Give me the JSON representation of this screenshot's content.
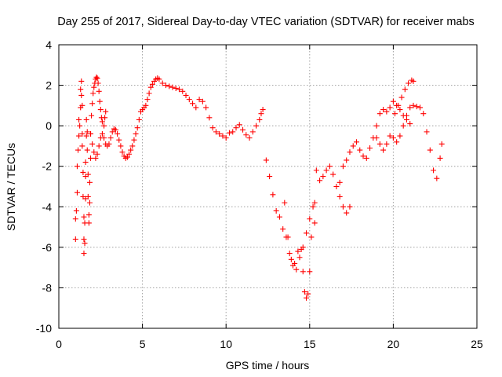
{
  "chart_data": {
    "type": "scatter",
    "title": "Day 255 of 2017, Sidereal Day-to-day VTEC variation (SDTVAR) for receiver mabs",
    "xlabel": "GPS time / hours",
    "ylabel": "SDTVAR / TECUs",
    "xlim": [
      0,
      25
    ],
    "ylim": [
      -10,
      4
    ],
    "xticks": [
      0,
      5,
      10,
      15,
      20,
      25
    ],
    "yticks": [
      -10,
      -8,
      -6,
      -4,
      -2,
      0,
      2,
      4
    ],
    "grid": true,
    "marker": "plus",
    "colors": {
      "series": "#ff0000",
      "grid": "#a0a0a0",
      "axis": "#000000"
    },
    "series": [
      {
        "name": "mabs",
        "points": [
          [
            1.0,
            -5.6
          ],
          [
            1.0,
            -4.6
          ],
          [
            1.05,
            -4.2
          ],
          [
            1.1,
            -3.3
          ],
          [
            1.1,
            -2.0
          ],
          [
            1.15,
            -1.2
          ],
          [
            1.2,
            -0.5
          ],
          [
            1.2,
            0.3
          ],
          [
            1.25,
            0.0
          ],
          [
            1.3,
            0.9
          ],
          [
            1.3,
            1.8
          ],
          [
            1.35,
            2.2
          ],
          [
            1.35,
            1.5
          ],
          [
            1.4,
            1.0
          ],
          [
            1.4,
            -0.4
          ],
          [
            1.4,
            -1.0
          ],
          [
            1.45,
            -2.3
          ],
          [
            1.45,
            -3.5
          ],
          [
            1.5,
            -4.5
          ],
          [
            1.5,
            -5.6
          ],
          [
            1.5,
            -6.3
          ],
          [
            1.55,
            -5.8
          ],
          [
            1.55,
            -4.8
          ],
          [
            1.6,
            -3.6
          ],
          [
            1.6,
            -2.5
          ],
          [
            1.6,
            -1.8
          ],
          [
            1.65,
            -0.5
          ],
          [
            1.65,
            0.3
          ],
          [
            1.7,
            -0.3
          ],
          [
            1.7,
            -1.2
          ],
          [
            1.75,
            -2.4
          ],
          [
            1.75,
            -3.5
          ],
          [
            1.8,
            -4.4
          ],
          [
            1.8,
            -4.8
          ],
          [
            1.85,
            -3.8
          ],
          [
            1.85,
            -2.8
          ],
          [
            1.9,
            -1.6
          ],
          [
            1.9,
            -0.4
          ],
          [
            1.95,
            0.5
          ],
          [
            2.0,
            1.1
          ],
          [
            2.05,
            1.6
          ],
          [
            2.1,
            1.9
          ],
          [
            2.15,
            2.1
          ],
          [
            2.2,
            2.3
          ],
          [
            2.25,
            2.4
          ],
          [
            2.3,
            2.35
          ],
          [
            2.35,
            2.1
          ],
          [
            2.4,
            1.7
          ],
          [
            2.45,
            1.2
          ],
          [
            2.5,
            0.8
          ],
          [
            2.55,
            0.4
          ],
          [
            2.6,
            0.2
          ],
          [
            2.7,
            0.0
          ],
          [
            2.75,
            0.4
          ],
          [
            2.8,
            0.7
          ],
          [
            1.9,
            -0.4
          ],
          [
            2.0,
            -0.9
          ],
          [
            2.1,
            -1.3
          ],
          [
            2.2,
            -1.6
          ],
          [
            2.3,
            -1.4
          ],
          [
            2.4,
            -1.0
          ],
          [
            2.5,
            -0.6
          ],
          [
            2.6,
            -0.4
          ],
          [
            2.7,
            -0.6
          ],
          [
            2.8,
            -0.9
          ],
          [
            2.9,
            -1.0
          ],
          [
            3.0,
            -0.9
          ],
          [
            3.1,
            -0.6
          ],
          [
            3.2,
            -0.3
          ],
          [
            3.3,
            -0.15
          ],
          [
            3.4,
            -0.2
          ],
          [
            3.5,
            -0.4
          ],
          [
            3.6,
            -0.7
          ],
          [
            3.7,
            -1.0
          ],
          [
            3.8,
            -1.3
          ],
          [
            3.9,
            -1.5
          ],
          [
            4.0,
            -1.6
          ],
          [
            4.1,
            -1.55
          ],
          [
            4.2,
            -1.4
          ],
          [
            4.3,
            -1.2
          ],
          [
            4.4,
            -1.0
          ],
          [
            4.5,
            -0.7
          ],
          [
            4.6,
            -0.4
          ],
          [
            4.7,
            -0.1
          ],
          [
            4.8,
            0.3
          ],
          [
            4.9,
            0.7
          ],
          [
            5.0,
            0.8
          ],
          [
            5.1,
            0.9
          ],
          [
            5.2,
            1.0
          ],
          [
            5.3,
            1.3
          ],
          [
            5.4,
            1.6
          ],
          [
            5.5,
            1.9
          ],
          [
            5.6,
            2.05
          ],
          [
            5.7,
            2.2
          ],
          [
            5.8,
            2.3
          ],
          [
            5.9,
            2.35
          ],
          [
            6.0,
            2.3
          ],
          [
            6.2,
            2.1
          ],
          [
            6.4,
            2.0
          ],
          [
            6.6,
            1.95
          ],
          [
            6.8,
            1.9
          ],
          [
            7.0,
            1.85
          ],
          [
            7.2,
            1.8
          ],
          [
            7.4,
            1.7
          ],
          [
            7.6,
            1.5
          ],
          [
            7.8,
            1.3
          ],
          [
            8.0,
            1.1
          ],
          [
            8.2,
            0.9
          ],
          [
            8.4,
            1.3
          ],
          [
            8.6,
            1.2
          ],
          [
            8.8,
            0.9
          ],
          [
            9.0,
            0.4
          ],
          [
            9.2,
            -0.1
          ],
          [
            9.4,
            -0.3
          ],
          [
            9.6,
            -0.4
          ],
          [
            9.8,
            -0.5
          ],
          [
            10.0,
            -0.6
          ],
          [
            10.2,
            -0.35
          ],
          [
            10.4,
            -0.3
          ],
          [
            10.6,
            -0.1
          ],
          [
            10.8,
            0.05
          ],
          [
            11.0,
            -0.2
          ],
          [
            11.2,
            -0.45
          ],
          [
            11.4,
            -0.6
          ],
          [
            11.6,
            -0.3
          ],
          [
            11.8,
            0.0
          ],
          [
            12.0,
            0.3
          ],
          [
            12.1,
            0.6
          ],
          [
            12.2,
            0.8
          ],
          [
            12.4,
            -1.7
          ],
          [
            12.6,
            -2.5
          ],
          [
            12.8,
            -3.4
          ],
          [
            13.0,
            -4.2
          ],
          [
            13.2,
            -4.5
          ],
          [
            13.4,
            -5.1
          ],
          [
            13.6,
            -5.5
          ],
          [
            13.8,
            -6.3
          ],
          [
            14.0,
            -6.9
          ],
          [
            14.2,
            -7.1
          ],
          [
            14.4,
            -6.5
          ],
          [
            14.6,
            -6.0
          ],
          [
            14.8,
            -5.3
          ],
          [
            15.0,
            -4.6
          ],
          [
            15.2,
            -4.0
          ],
          [
            15.3,
            -3.8
          ],
          [
            13.5,
            -3.8
          ],
          [
            13.7,
            -5.5
          ],
          [
            13.9,
            -6.6
          ],
          [
            14.1,
            -6.8
          ],
          [
            14.3,
            -6.2
          ],
          [
            14.5,
            -6.1
          ],
          [
            14.6,
            -7.2
          ],
          [
            14.7,
            -8.2
          ],
          [
            14.8,
            -8.5
          ],
          [
            14.9,
            -8.3
          ],
          [
            15.0,
            -7.2
          ],
          [
            15.1,
            -5.5
          ],
          [
            15.3,
            -4.8
          ],
          [
            15.4,
            -2.2
          ],
          [
            15.6,
            -2.7
          ],
          [
            15.8,
            -2.5
          ],
          [
            16.0,
            -2.2
          ],
          [
            16.2,
            -2.0
          ],
          [
            16.4,
            -2.4
          ],
          [
            16.6,
            -3.0
          ],
          [
            16.8,
            -3.5
          ],
          [
            17.0,
            -4.0
          ],
          [
            17.2,
            -4.3
          ],
          [
            17.4,
            -4.0
          ],
          [
            16.8,
            -2.8
          ],
          [
            17.0,
            -2.0
          ],
          [
            17.2,
            -1.7
          ],
          [
            17.4,
            -1.3
          ],
          [
            17.6,
            -1.0
          ],
          [
            17.8,
            -0.8
          ],
          [
            18.0,
            -1.2
          ],
          [
            18.2,
            -1.5
          ],
          [
            18.4,
            -1.6
          ],
          [
            18.6,
            -1.1
          ],
          [
            18.8,
            -0.6
          ],
          [
            19.0,
            0.0
          ],
          [
            19.2,
            0.6
          ],
          [
            19.4,
            0.8
          ],
          [
            19.6,
            0.7
          ],
          [
            19.8,
            0.9
          ],
          [
            20.0,
            1.2
          ],
          [
            20.2,
            1.0
          ],
          [
            20.4,
            0.8
          ],
          [
            20.6,
            0.5
          ],
          [
            20.8,
            0.3
          ],
          [
            21.0,
            0.1
          ],
          [
            19.0,
            -0.6
          ],
          [
            19.2,
            -0.9
          ],
          [
            19.4,
            -1.2
          ],
          [
            19.6,
            -0.9
          ],
          [
            19.8,
            -0.5
          ],
          [
            20.0,
            -0.6
          ],
          [
            20.2,
            -0.8
          ],
          [
            20.4,
            -0.5
          ],
          [
            20.6,
            0.0
          ],
          [
            20.8,
            0.5
          ],
          [
            21.0,
            0.9
          ],
          [
            21.2,
            1.0
          ],
          [
            21.4,
            0.95
          ],
          [
            21.6,
            0.9
          ],
          [
            21.8,
            0.6
          ],
          [
            22.0,
            -0.3
          ],
          [
            22.2,
            -1.2
          ],
          [
            22.4,
            -2.2
          ],
          [
            22.6,
            -2.6
          ],
          [
            22.8,
            -1.6
          ],
          [
            22.9,
            -0.9
          ],
          [
            20.1,
            0.6
          ],
          [
            20.3,
            1.0
          ],
          [
            20.5,
            1.4
          ],
          [
            20.7,
            1.8
          ],
          [
            20.9,
            2.1
          ],
          [
            21.1,
            2.25
          ],
          [
            21.2,
            2.2
          ]
        ]
      }
    ]
  }
}
